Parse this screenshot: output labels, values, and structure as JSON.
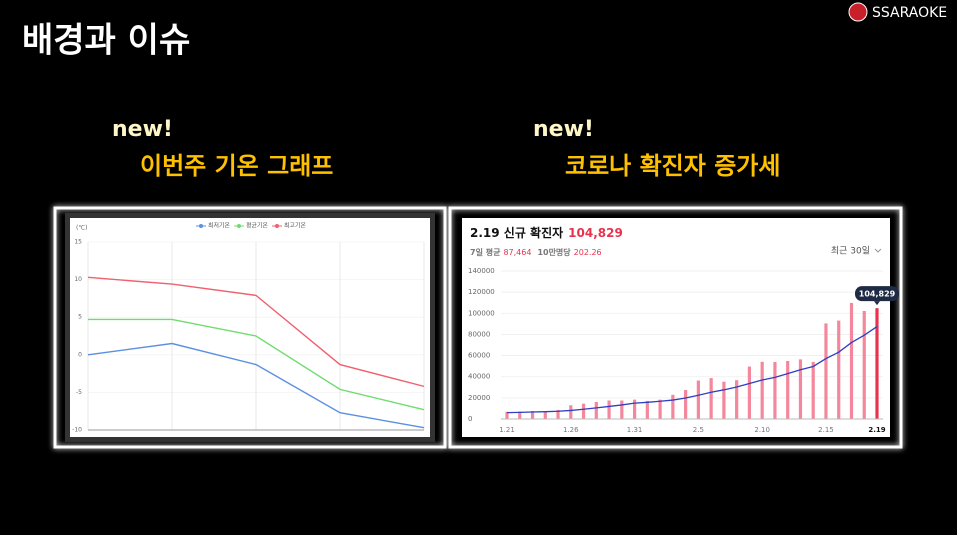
{
  "slide": {
    "title": "배경과 이슈",
    "logo": "SSARAOKE",
    "captions": [
      {
        "tag": "new!",
        "text": "이번주 기온 그래프"
      },
      {
        "tag": "new!",
        "text": "코로나 확진자 증가세"
      }
    ]
  },
  "chart_data": [
    {
      "type": "line",
      "y_label": "(℃)",
      "categories": [
        null,
        null,
        null,
        null,
        null
      ],
      "series": [
        {
          "name": "최저기온",
          "color": "#5b8fe0",
          "values": [
            0,
            1.5,
            -1.3,
            -7.7,
            -9.7
          ]
        },
        {
          "name": "평균기온",
          "color": "#6edc6e",
          "values": [
            4.7,
            4.7,
            2.5,
            -4.6,
            -7.3
          ]
        },
        {
          "name": "최고기온",
          "color": "#f0606e",
          "values": [
            10.3,
            9.4,
            7.9,
            -1.3,
            -4.2
          ]
        }
      ],
      "ylim": [
        -10,
        15
      ],
      "yticks": [
        -10,
        -5,
        0,
        5,
        10,
        15
      ],
      "grid": true,
      "legend": "top"
    },
    {
      "type": "bar",
      "title": "2.19 신규 확진자",
      "headline": "104,829",
      "stats": [
        {
          "label": "7일 평균",
          "value": "87,464"
        },
        {
          "label": "10만명당",
          "value": "202.26"
        }
      ],
      "period": "최근 30일",
      "categories": [
        "1.21",
        null,
        null,
        null,
        null,
        "1.26",
        null,
        null,
        null,
        null,
        "1.31",
        null,
        null,
        null,
        null,
        "2.5",
        null,
        null,
        null,
        null,
        "2.10",
        null,
        null,
        null,
        null,
        "2.15",
        null,
        null,
        null,
        "2.19"
      ],
      "series": [
        {
          "type": "bar",
          "color": "#f4879b",
          "highlight_color": "#e8334f",
          "values": [
            6800,
            7000,
            7600,
            7500,
            8600,
            13000,
            14500,
            16100,
            17500,
            17500,
            18300,
            17100,
            18300,
            22900,
            27400,
            36400,
            38700,
            35300,
            36700,
            49600,
            54100,
            53900,
            54900,
            56400,
            54000,
            90400,
            93100,
            109800,
            102200,
            104829
          ]
        },
        {
          "type": "line",
          "color": "#2f3fc0",
          "values": [
            6000,
            6300,
            6600,
            6900,
            7300,
            8100,
            9200,
            10500,
            11900,
            13300,
            15000,
            15800,
            16800,
            17900,
            19900,
            22500,
            25300,
            27600,
            30300,
            33600,
            36900,
            39400,
            42900,
            46600,
            49700,
            57200,
            63200,
            72300,
            79300,
            87464
          ]
        }
      ],
      "annotations": [
        {
          "text": "104,829"
        }
      ],
      "ylim": [
        0,
        140000
      ],
      "yticks": [
        0,
        20000,
        40000,
        60000,
        80000,
        100000,
        120000,
        140000
      ],
      "grid": true
    }
  ]
}
